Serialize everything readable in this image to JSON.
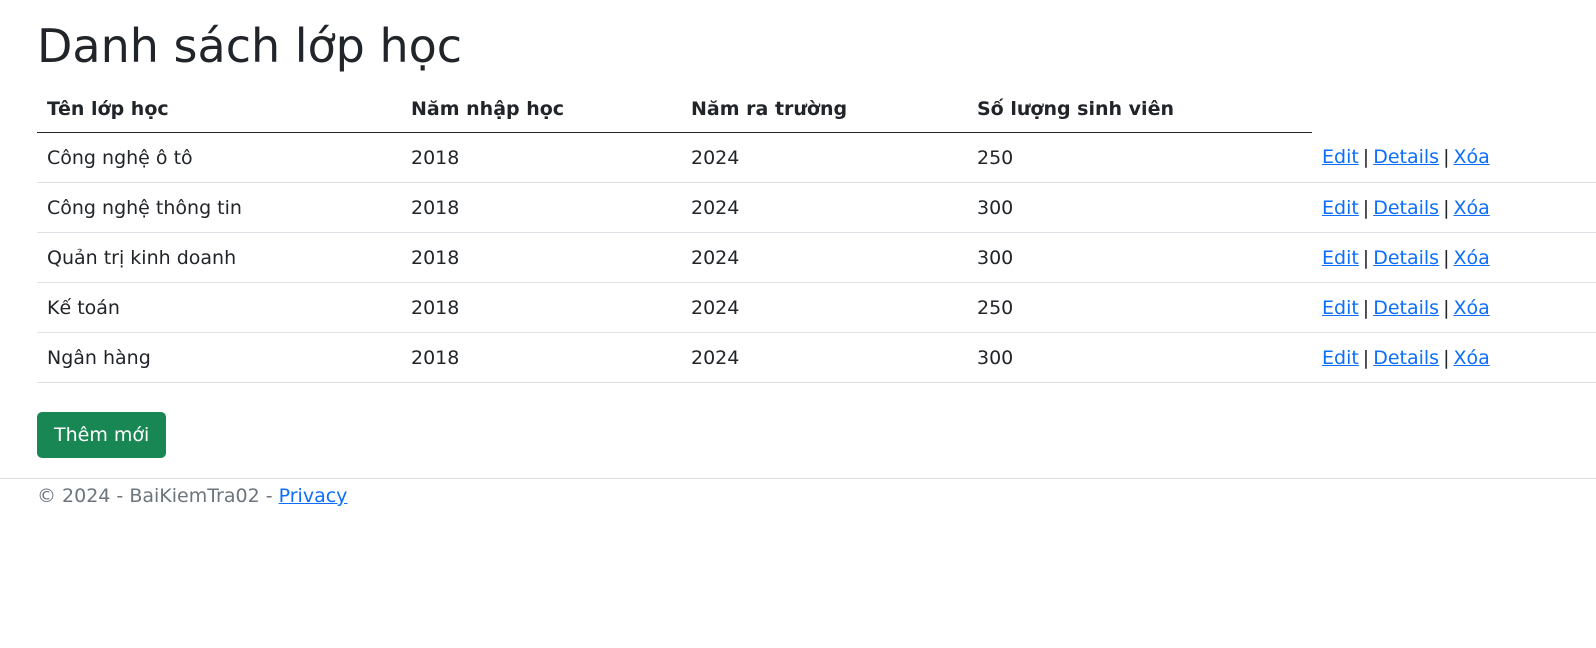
{
  "page": {
    "title": "Danh sách lớp học"
  },
  "table": {
    "headers": [
      "Tên lớp học",
      "Năm nhập học",
      "Năm ra trường",
      "Số lượng sinh viên"
    ],
    "rows": [
      {
        "name": "Công nghệ ô tô",
        "start_year": "2018",
        "end_year": "2024",
        "students": "250"
      },
      {
        "name": "Công nghệ thông tin",
        "start_year": "2018",
        "end_year": "2024",
        "students": "300"
      },
      {
        "name": "Quản trị kinh doanh",
        "start_year": "2018",
        "end_year": "2024",
        "students": "300"
      },
      {
        "name": "Kế toán",
        "start_year": "2018",
        "end_year": "2024",
        "students": "250"
      },
      {
        "name": "Ngân hàng",
        "start_year": "2018",
        "end_year": "2024",
        "students": "300"
      }
    ],
    "actions": {
      "edit": "Edit",
      "details": "Details",
      "delete": "Xóa",
      "separator": "|"
    }
  },
  "add_button": {
    "label": "Thêm mới"
  },
  "footer": {
    "text": "© 2024 - BaiKiemTra02 - ",
    "privacy_link": "Privacy"
  },
  "colors": {
    "link": "#0d6efd",
    "button_bg": "#198754",
    "text": "#212529",
    "muted": "#6c757d"
  }
}
